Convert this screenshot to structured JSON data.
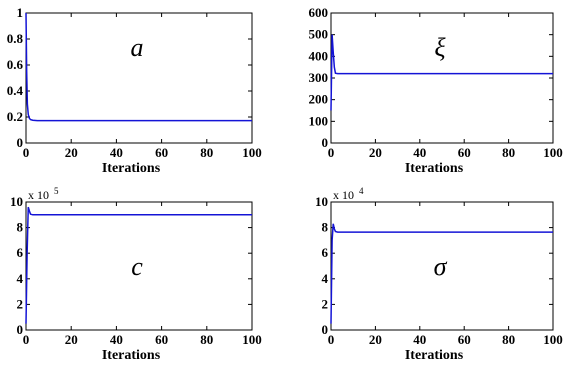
{
  "chart_data": [
    {
      "type": "line",
      "title": "a",
      "xlabel": "Iterations",
      "ylabel": "",
      "xlim": [
        0,
        100
      ],
      "ylim": [
        0,
        1
      ],
      "xticks": [
        0,
        20,
        40,
        60,
        80,
        100
      ],
      "yticks": [
        0,
        0.2,
        0.4,
        0.6,
        0.8,
        1
      ],
      "ytick_labels": [
        "0",
        "0.2",
        "0.4",
        "0.6",
        "0.8",
        "1"
      ],
      "exponent": "",
      "exponent_power": "",
      "grid": false,
      "series_color": "#1414d6",
      "series": [
        {
          "x": [
            0,
            0.3,
            0.6,
            1,
            1.5,
            2,
            3,
            5,
            10,
            20,
            40,
            60,
            80,
            100
          ],
          "y": [
            1.0,
            0.55,
            0.3,
            0.22,
            0.19,
            0.18,
            0.175,
            0.172,
            0.172,
            0.172,
            0.172,
            0.172,
            0.172,
            0.172
          ]
        }
      ]
    },
    {
      "type": "line",
      "title": "ξ",
      "xlabel": "Iterations",
      "ylabel": "",
      "xlim": [
        0,
        100
      ],
      "ylim": [
        0,
        600
      ],
      "xticks": [
        0,
        20,
        40,
        60,
        80,
        100
      ],
      "yticks": [
        0,
        100,
        200,
        300,
        400,
        500,
        600
      ],
      "ytick_labels": [
        "0",
        "100",
        "200",
        "300",
        "400",
        "500",
        "600"
      ],
      "exponent": "",
      "exponent_power": "",
      "grid": false,
      "series_color": "#1414d6",
      "series": [
        {
          "x": [
            0,
            0.5,
            1,
            1.5,
            2,
            3,
            5,
            10,
            20,
            40,
            60,
            80,
            100
          ],
          "y": [
            150,
            500,
            420,
            350,
            322,
            320,
            320,
            320,
            320,
            320,
            320,
            320,
            320
          ]
        }
      ]
    },
    {
      "type": "line",
      "title": "c",
      "xlabel": "Iterations",
      "ylabel": "",
      "xlim": [
        0,
        100
      ],
      "ylim": [
        0,
        10
      ],
      "xticks": [
        0,
        20,
        40,
        60,
        80,
        100
      ],
      "yticks": [
        0,
        2,
        4,
        6,
        8,
        10
      ],
      "ytick_labels": [
        "0",
        "2",
        "4",
        "6",
        "8",
        "10"
      ],
      "exponent": "x 10",
      "exponent_power": "5",
      "grid": false,
      "series_color": "#1414d6",
      "series": [
        {
          "x": [
            0,
            0.5,
            1,
            1.5,
            2,
            3,
            5,
            10,
            20,
            40,
            60,
            80,
            100
          ],
          "y": [
            0.5,
            6.0,
            9.6,
            9.3,
            9.05,
            9.0,
            9.0,
            9.0,
            9.0,
            9.0,
            9.0,
            9.0,
            9.0
          ]
        }
      ]
    },
    {
      "type": "line",
      "title": "σ",
      "xlabel": "Iterations",
      "ylabel": "",
      "xlim": [
        0,
        100
      ],
      "ylim": [
        0,
        10
      ],
      "xticks": [
        0,
        20,
        40,
        60,
        80,
        100
      ],
      "yticks": [
        0,
        2,
        4,
        6,
        8,
        10
      ],
      "ytick_labels": [
        "0",
        "2",
        "4",
        "6",
        "8",
        "10"
      ],
      "exponent": "x 10",
      "exponent_power": "4",
      "grid": false,
      "series_color": "#1414d6",
      "series": [
        {
          "x": [
            0,
            0.5,
            1,
            1.5,
            2,
            3,
            5,
            10,
            20,
            40,
            60,
            80,
            100
          ],
          "y": [
            0.5,
            7.0,
            8.3,
            7.9,
            7.7,
            7.65,
            7.65,
            7.65,
            7.65,
            7.65,
            7.65,
            7.65,
            7.65
          ]
        }
      ]
    }
  ]
}
